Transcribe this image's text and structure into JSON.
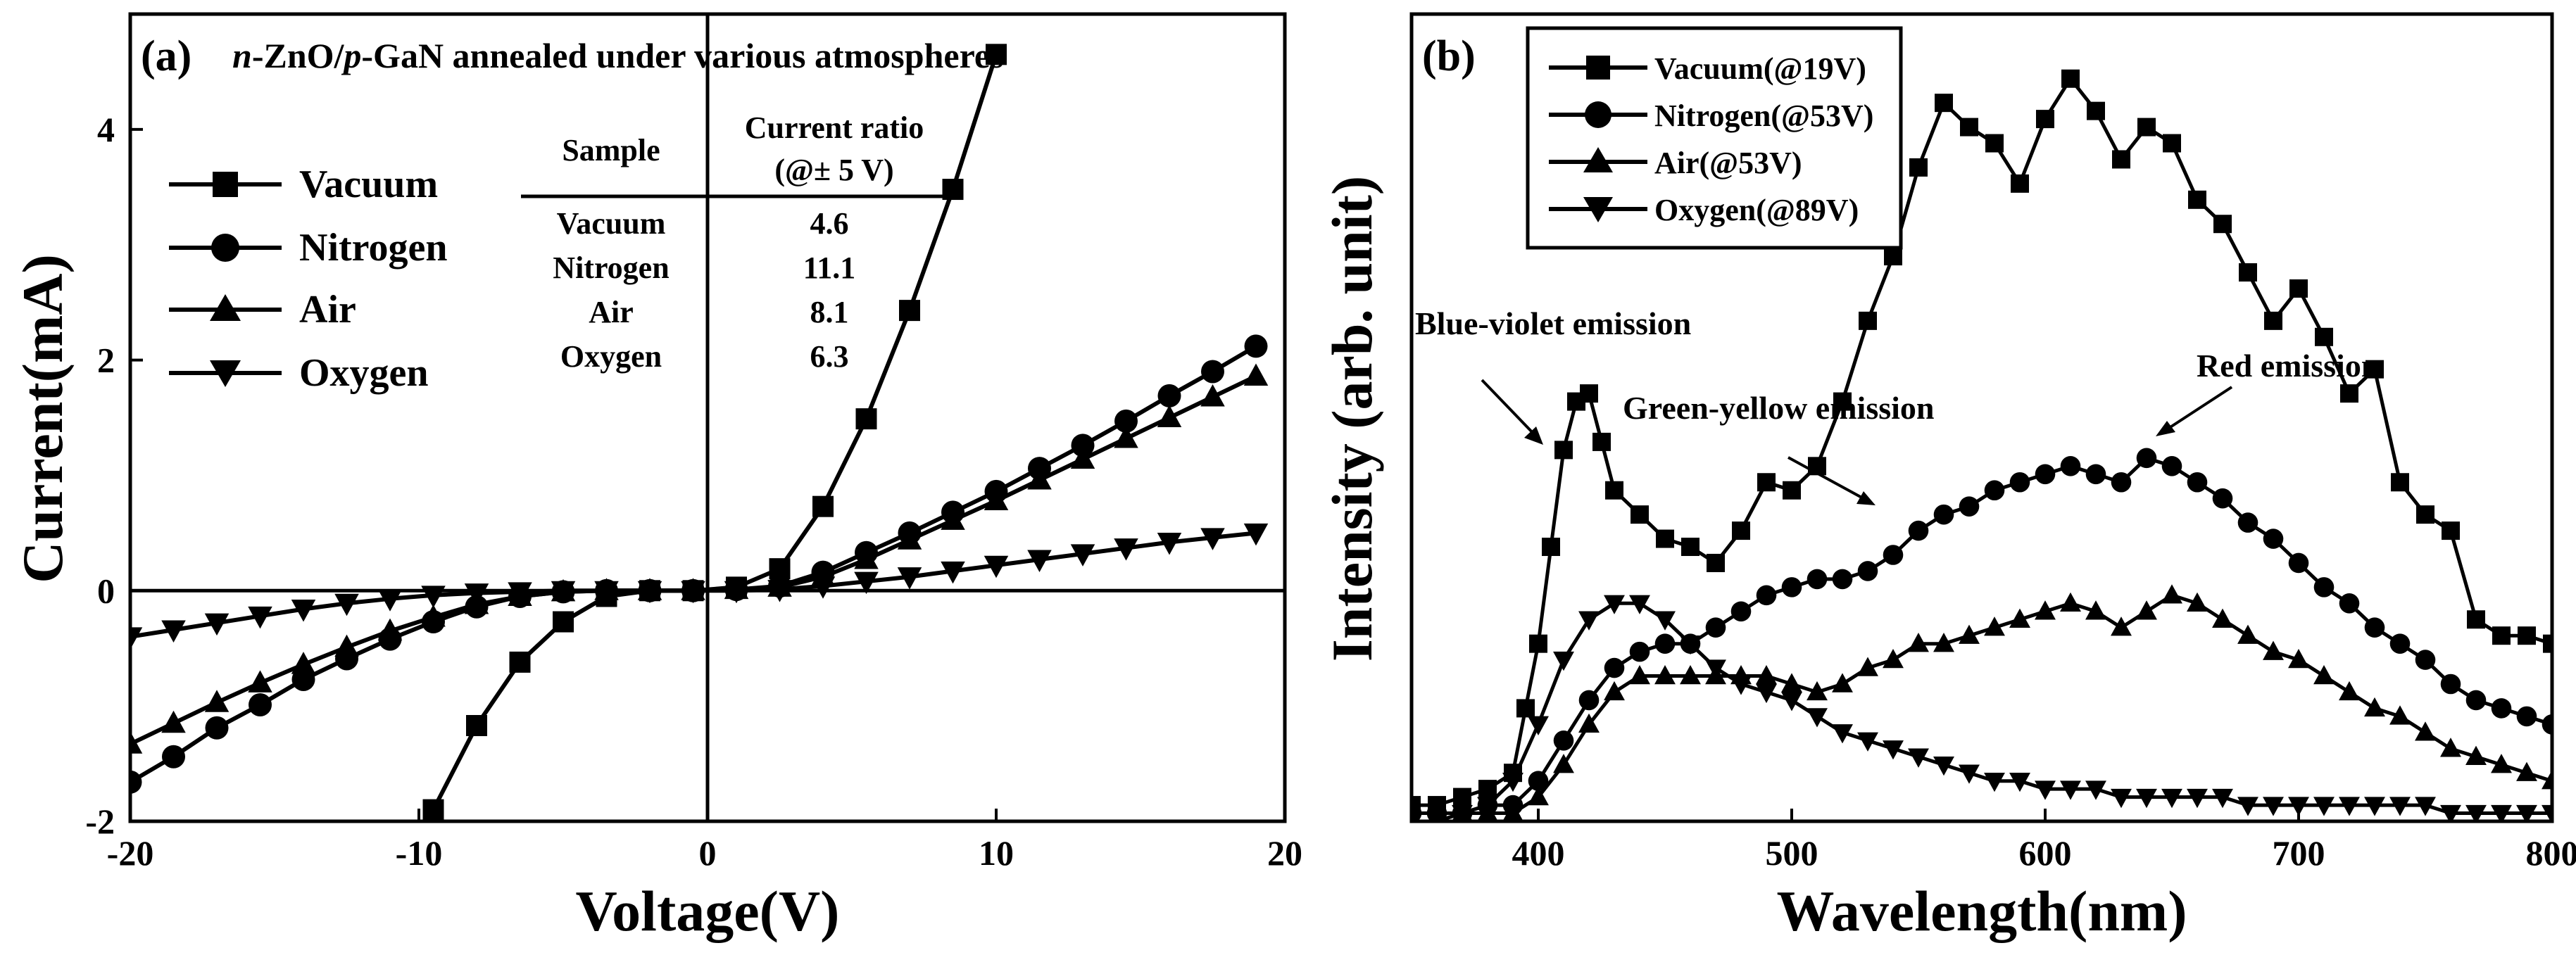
{
  "colors": {
    "line": "#000000",
    "background": "#ffffff"
  },
  "chart_data": [
    {
      "type": "line",
      "panel_label": "(a)",
      "title": "n-ZnO/p-GaN annealed under various atmospheres",
      "title_parts": {
        "n": "n",
        "zno": "-ZnO/",
        "p": "p",
        "gan": "-GaN annealed under various atmospheres"
      },
      "xlabel": "Voltage(V)",
      "ylabel": "Current(mA)",
      "xlim": [
        -20,
        20
      ],
      "ylim": [
        -2,
        5
      ],
      "xticks": [
        -20,
        -10,
        0,
        10,
        20
      ],
      "yticks": [
        -2,
        0,
        2,
        4
      ],
      "legend": {
        "position": "top-left",
        "entries": [
          {
            "name": "Vacuum",
            "marker": "square"
          },
          {
            "name": "Nitrogen",
            "marker": "circle"
          },
          {
            "name": "Air",
            "marker": "triangle-up"
          },
          {
            "name": "Oxygen",
            "marker": "triangle-down"
          }
        ]
      },
      "inset_table": {
        "headers": [
          "Sample",
          "Current ratio",
          "(@± 5 V)"
        ],
        "rows": [
          [
            "Vacuum",
            "4.6"
          ],
          [
            "Nitrogen",
            "11.1"
          ],
          [
            "Air",
            "8.1"
          ],
          [
            "Oxygen",
            "6.3"
          ]
        ]
      },
      "series": [
        {
          "name": "Vacuum",
          "marker": "square",
          "x": [
            -9.5,
            -8,
            -6.5,
            -5,
            -3.5,
            -2,
            -0.5,
            1,
            2.5,
            4,
            5.5,
            7,
            8.5,
            10
          ],
          "y": [
            -1.9,
            -1.17,
            -0.62,
            -0.27,
            -0.05,
            0.0,
            0.0,
            0.03,
            0.19,
            0.73,
            1.49,
            2.43,
            3.48,
            4.65
          ]
        },
        {
          "name": "Nitrogen",
          "marker": "circle",
          "x": [
            -20,
            -18.5,
            -17,
            -15.5,
            -14,
            -12.5,
            -11,
            -9.5,
            -8,
            -6.5,
            -5,
            -3.5,
            -2,
            -0.5,
            1,
            2.5,
            4,
            5.5,
            7,
            8.5,
            10,
            11.5,
            13,
            14.5,
            16,
            17.5,
            19
          ],
          "y": [
            -1.66,
            -1.44,
            -1.19,
            -0.99,
            -0.77,
            -0.59,
            -0.42,
            -0.27,
            -0.14,
            -0.05,
            -0.01,
            0.0,
            0.0,
            0.0,
            0.01,
            0.04,
            0.16,
            0.33,
            0.5,
            0.68,
            0.86,
            1.06,
            1.26,
            1.47,
            1.69,
            1.9,
            2.12
          ]
        },
        {
          "name": "Air",
          "marker": "triangle-up",
          "x": [
            -20,
            -18.5,
            -17,
            -15.5,
            -14,
            -12.5,
            -11,
            -9.5,
            -8,
            -6.5,
            -5,
            -3.5,
            -2,
            -0.5,
            1,
            2.5,
            4,
            5.5,
            7,
            8.5,
            10,
            11.5,
            13,
            14.5,
            16,
            17.5,
            19
          ],
          "y": [
            -1.33,
            -1.15,
            -0.97,
            -0.8,
            -0.64,
            -0.49,
            -0.35,
            -0.23,
            -0.12,
            -0.05,
            -0.01,
            0.0,
            0.0,
            0.0,
            0.01,
            0.03,
            0.12,
            0.27,
            0.44,
            0.61,
            0.78,
            0.96,
            1.14,
            1.32,
            1.5,
            1.68,
            1.86
          ]
        },
        {
          "name": "Oxygen",
          "marker": "triangle-down",
          "x": [
            -20,
            -18.5,
            -17,
            -15.5,
            -14,
            -12.5,
            -11,
            -9.5,
            -8,
            -6.5,
            -5,
            -3.5,
            -2,
            -0.5,
            1,
            2.5,
            4,
            5.5,
            7,
            8.5,
            10,
            11.5,
            13,
            14.5,
            16,
            17.5,
            19
          ],
          "y": [
            -0.4,
            -0.34,
            -0.28,
            -0.22,
            -0.16,
            -0.11,
            -0.07,
            -0.04,
            -0.02,
            -0.01,
            0.0,
            0.0,
            0.0,
            0.0,
            0.0,
            0.01,
            0.04,
            0.08,
            0.12,
            0.17,
            0.22,
            0.27,
            0.32,
            0.37,
            0.42,
            0.46,
            0.5
          ]
        }
      ]
    },
    {
      "type": "line",
      "panel_label": "(b)",
      "title": "",
      "xlabel": "Wavelength(nm)",
      "ylabel": "Intensity (arb. unit)",
      "xlim": [
        350,
        800
      ],
      "ylim": [
        0,
        1
      ],
      "xticks": [
        400,
        500,
        600,
        700,
        800
      ],
      "yticks": [],
      "legend": {
        "position": "top-left",
        "entries": [
          {
            "name": "Vacuum(@19V)",
            "marker": "square"
          },
          {
            "name": "Nitrogen(@53V)",
            "marker": "circle"
          },
          {
            "name": "Air(@53V)",
            "marker": "triangle-up"
          },
          {
            "name": "Oxygen(@89V)",
            "marker": "triangle-down"
          }
        ]
      },
      "annotations": [
        {
          "text": "Blue-violet emission",
          "points_to_x": 410
        },
        {
          "text": "Green-yellow emission",
          "points_to_x": 530
        },
        {
          "text": "Red emission",
          "points_to_x": 640
        }
      ],
      "series": [
        {
          "name": "Vacuum(@19V)",
          "marker": "square",
          "x": [
            350,
            360,
            370,
            380,
            390,
            395,
            400,
            405,
            410,
            415,
            420,
            425,
            430,
            440,
            450,
            460,
            470,
            480,
            490,
            500,
            510,
            520,
            530,
            540,
            550,
            560,
            570,
            580,
            590,
            600,
            610,
            620,
            630,
            640,
            650,
            660,
            670,
            680,
            690,
            700,
            710,
            720,
            730,
            740,
            750,
            760,
            770,
            780,
            790,
            800
          ],
          "y": [
            0.02,
            0.02,
            0.03,
            0.04,
            0.06,
            0.14,
            0.22,
            0.34,
            0.46,
            0.52,
            0.53,
            0.47,
            0.41,
            0.38,
            0.35,
            0.34,
            0.32,
            0.36,
            0.42,
            0.41,
            0.44,
            0.52,
            0.62,
            0.7,
            0.81,
            0.89,
            0.86,
            0.84,
            0.79,
            0.87,
            0.92,
            0.88,
            0.82,
            0.86,
            0.84,
            0.77,
            0.74,
            0.68,
            0.62,
            0.66,
            0.6,
            0.53,
            0.56,
            0.42,
            0.38,
            0.36,
            0.25,
            0.23,
            0.23,
            0.22
          ]
        },
        {
          "name": "Nitrogen(@53V)",
          "marker": "circle",
          "x": [
            350,
            360,
            370,
            380,
            390,
            400,
            410,
            420,
            430,
            440,
            450,
            460,
            470,
            480,
            490,
            500,
            510,
            520,
            530,
            540,
            550,
            560,
            570,
            580,
            590,
            600,
            610,
            620,
            630,
            640,
            650,
            660,
            670,
            680,
            690,
            700,
            710,
            720,
            730,
            740,
            750,
            760,
            770,
            780,
            790,
            800
          ],
          "y": [
            0.01,
            0.01,
            0.01,
            0.02,
            0.02,
            0.05,
            0.1,
            0.15,
            0.19,
            0.21,
            0.22,
            0.22,
            0.24,
            0.26,
            0.28,
            0.29,
            0.3,
            0.3,
            0.31,
            0.33,
            0.36,
            0.38,
            0.39,
            0.41,
            0.42,
            0.43,
            0.44,
            0.43,
            0.42,
            0.45,
            0.44,
            0.42,
            0.4,
            0.37,
            0.35,
            0.32,
            0.29,
            0.27,
            0.24,
            0.22,
            0.2,
            0.17,
            0.15,
            0.14,
            0.13,
            0.12
          ]
        },
        {
          "name": "Air(@53V)",
          "marker": "triangle-up",
          "x": [
            350,
            360,
            370,
            380,
            390,
            400,
            410,
            420,
            430,
            440,
            450,
            460,
            470,
            480,
            490,
            500,
            510,
            520,
            530,
            540,
            550,
            560,
            570,
            580,
            590,
            600,
            610,
            620,
            630,
            640,
            650,
            660,
            670,
            680,
            690,
            700,
            710,
            720,
            730,
            740,
            750,
            760,
            770,
            780,
            790,
            800
          ],
          "y": [
            0.0,
            0.0,
            0.01,
            0.01,
            0.01,
            0.03,
            0.07,
            0.12,
            0.16,
            0.18,
            0.18,
            0.18,
            0.18,
            0.18,
            0.18,
            0.17,
            0.16,
            0.17,
            0.19,
            0.2,
            0.22,
            0.22,
            0.23,
            0.24,
            0.25,
            0.26,
            0.27,
            0.26,
            0.24,
            0.26,
            0.28,
            0.27,
            0.25,
            0.23,
            0.21,
            0.2,
            0.18,
            0.16,
            0.14,
            0.13,
            0.11,
            0.09,
            0.08,
            0.07,
            0.06,
            0.05
          ]
        },
        {
          "name": "Oxygen(@89V)",
          "marker": "triangle-down",
          "x": [
            350,
            360,
            370,
            380,
            390,
            400,
            410,
            420,
            430,
            440,
            450,
            460,
            470,
            480,
            490,
            500,
            510,
            520,
            530,
            540,
            550,
            560,
            570,
            580,
            590,
            600,
            610,
            620,
            630,
            640,
            650,
            660,
            670,
            680,
            690,
            700,
            710,
            720,
            730,
            740,
            750,
            760,
            770,
            780,
            790,
            800
          ],
          "y": [
            0.0,
            0.0,
            0.01,
            0.02,
            0.05,
            0.12,
            0.2,
            0.25,
            0.27,
            0.27,
            0.25,
            0.22,
            0.19,
            0.17,
            0.16,
            0.15,
            0.13,
            0.11,
            0.1,
            0.09,
            0.08,
            0.07,
            0.06,
            0.05,
            0.05,
            0.04,
            0.04,
            0.04,
            0.03,
            0.03,
            0.03,
            0.03,
            0.03,
            0.02,
            0.02,
            0.02,
            0.02,
            0.02,
            0.02,
            0.02,
            0.02,
            0.01,
            0.01,
            0.01,
            0.01,
            0.01
          ]
        }
      ]
    }
  ]
}
